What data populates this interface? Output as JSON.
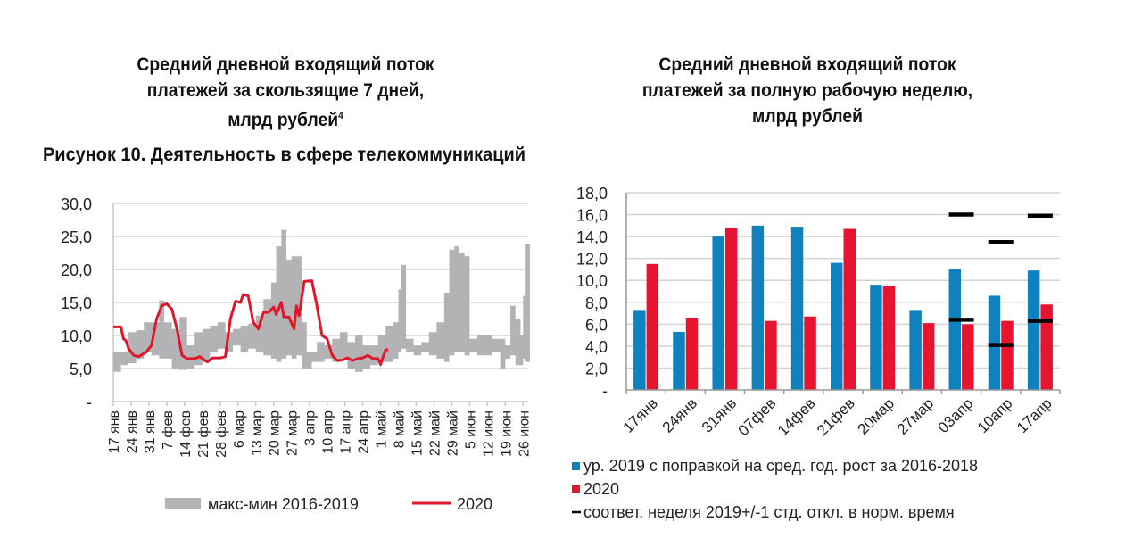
{
  "titles": {
    "left": [
      "Средний дневной входящий поток",
      "платежей за скользящие 7 дней,",
      "млрд рублей"
    ],
    "left_footnote": "4",
    "right": [
      "Средний дневной входящий поток",
      "платежей за полную рабочую неделю,",
      "млрд рублей"
    ],
    "figure_caption": "Рисунок 10. Деятельность в сфере телекоммуникаций"
  },
  "chart_data": [
    {
      "type": "area",
      "title": "Средний дневной входящий поток платежей за скользящие 7 дней, млрд рублей",
      "ylim": [
        0,
        30
      ],
      "yticks": [
        "-",
        "5,0",
        "10,0",
        "15,0",
        "20,0",
        "25,0",
        "30,0"
      ],
      "ytick_values": [
        0,
        5,
        10,
        15,
        20,
        25,
        30
      ],
      "grid": true,
      "xlim_days": [
        0,
        163
      ],
      "xtick_labels": [
        "17 янв",
        "24 янв",
        "31 янв",
        "7 фев",
        "14 фев",
        "21 фев",
        "28 фев",
        "6 мар",
        "13 мар",
        "20 мар",
        "27 мар",
        "3 апр",
        "10 апр",
        "17 апр",
        "24 апр",
        "1 май",
        "8 май",
        "15 май",
        "22 май",
        "29 май",
        "5 июн",
        "12 июн",
        "19 июн",
        "26 июн"
      ],
      "legend": [
        {
          "name": "макс-мин 2016-2019",
          "color": "#b3b3b5",
          "kind": "band"
        },
        {
          "name": "2020",
          "color": "#e0162b",
          "kind": "line"
        }
      ],
      "legend_position": "bottom",
      "band_day_min_max": [
        [
          0,
          4.5,
          7.5
        ],
        [
          3,
          5.5,
          7.5
        ],
        [
          6,
          5.8,
          10.5
        ],
        [
          9,
          6.5,
          10.8
        ],
        [
          12,
          7.5,
          12.0
        ],
        [
          15,
          7.0,
          12.0
        ],
        [
          18,
          6.5,
          15.3
        ],
        [
          20,
          6.5,
          12.0
        ],
        [
          23,
          5.0,
          11.0
        ],
        [
          26,
          4.8,
          12.8
        ],
        [
          29,
          5.0,
          8.5
        ],
        [
          32,
          5.5,
          10.5
        ],
        [
          35,
          6.0,
          11.0
        ],
        [
          38,
          7.5,
          11.5
        ],
        [
          41,
          8.0,
          12.0
        ],
        [
          44,
          7.5,
          10.5
        ],
        [
          47,
          8.5,
          11.0
        ],
        [
          50,
          7.5,
          11.5
        ],
        [
          53,
          8.0,
          11.8
        ],
        [
          56,
          7.5,
          13.0
        ],
        [
          59,
          7.0,
          15.5
        ],
        [
          62,
          6.5,
          18.0
        ],
        [
          64,
          6.0,
          23.5
        ],
        [
          66,
          6.5,
          26.0
        ],
        [
          68,
          7.0,
          21.5
        ],
        [
          70,
          6.5,
          22.0
        ],
        [
          72,
          7.0,
          22.0
        ],
        [
          74,
          5.0,
          12.0
        ],
        [
          76,
          5.0,
          7.5
        ],
        [
          78,
          6.0,
          7.5
        ],
        [
          80,
          6.0,
          9.0
        ],
        [
          83,
          6.5,
          8.5
        ],
        [
          86,
          6.0,
          9.5
        ],
        [
          89,
          6.5,
          10.5
        ],
        [
          92,
          5.0,
          9.0
        ],
        [
          95,
          4.5,
          10.0
        ],
        [
          98,
          5.0,
          8.5
        ],
        [
          101,
          5.5,
          8.5
        ],
        [
          104,
          6.0,
          10.0
        ],
        [
          107,
          6.0,
          11.5
        ],
        [
          110,
          6.5,
          12.0
        ],
        [
          112,
          7.5,
          17.0
        ],
        [
          113,
          8.0,
          20.7
        ],
        [
          115,
          7.5,
          9.5
        ],
        [
          118,
          7.0,
          8.5
        ],
        [
          121,
          7.5,
          9.0
        ],
        [
          124,
          7.0,
          10.5
        ],
        [
          127,
          6.5,
          12.0
        ],
        [
          130,
          6.0,
          16.5
        ],
        [
          132,
          7.0,
          23.0
        ],
        [
          134,
          7.5,
          23.5
        ],
        [
          136,
          7.5,
          22.5
        ],
        [
          138,
          7.0,
          22.0
        ],
        [
          140,
          7.5,
          9.5
        ],
        [
          143,
          7.0,
          10.0
        ],
        [
          146,
          7.0,
          10.0
        ],
        [
          149,
          7.5,
          9.5
        ],
        [
          152,
          5.0,
          9.5
        ],
        [
          154,
          6.5,
          8.5
        ],
        [
          156,
          7.0,
          14.5
        ],
        [
          158,
          5.5,
          12.5
        ],
        [
          160,
          5.5,
          10.0
        ],
        [
          161,
          6.5,
          16.0
        ],
        [
          162,
          6.0,
          23.8
        ],
        [
          163,
          6.0,
          23.8
        ]
      ],
      "line_2020_day_value": [
        [
          0,
          11.3
        ],
        [
          3,
          11.3
        ],
        [
          4,
          9.5
        ],
        [
          5,
          9.2
        ],
        [
          6,
          8.0
        ],
        [
          8,
          7.0
        ],
        [
          10,
          6.8
        ],
        [
          13,
          7.5
        ],
        [
          15,
          8.5
        ],
        [
          17,
          12.5
        ],
        [
          19,
          14.5
        ],
        [
          21,
          14.8
        ],
        [
          23,
          14.0
        ],
        [
          25,
          11.0
        ],
        [
          27,
          7.0
        ],
        [
          29,
          6.5
        ],
        [
          32,
          6.5
        ],
        [
          34,
          6.8
        ],
        [
          36,
          6.2
        ],
        [
          37,
          6.0
        ],
        [
          39,
          6.6
        ],
        [
          42,
          6.6
        ],
        [
          44,
          6.8
        ],
        [
          46,
          12.5
        ],
        [
          48,
          15.2
        ],
        [
          50,
          15.0
        ],
        [
          51,
          16.2
        ],
        [
          53,
          16.0
        ],
        [
          55,
          12.0
        ],
        [
          57,
          11.0
        ],
        [
          59,
          13.5
        ],
        [
          61,
          13.5
        ],
        [
          63,
          14.3
        ],
        [
          64,
          13.2
        ],
        [
          66,
          15.0
        ],
        [
          67,
          12.8
        ],
        [
          69,
          12.8
        ],
        [
          71,
          11.0
        ],
        [
          72,
          14.5
        ],
        [
          73,
          13.0
        ],
        [
          75,
          18.2
        ],
        [
          78,
          18.3
        ],
        [
          80,
          14.5
        ],
        [
          82,
          10.0
        ],
        [
          84,
          9.5
        ],
        [
          86,
          7.0
        ],
        [
          88,
          6.2
        ],
        [
          90,
          6.3
        ],
        [
          92,
          6.6
        ],
        [
          94,
          6.2
        ],
        [
          96,
          6.5
        ],
        [
          98,
          6.6
        ],
        [
          100,
          7.0
        ],
        [
          102,
          6.5
        ],
        [
          104,
          6.5
        ],
        [
          105,
          5.6
        ],
        [
          106,
          6.8
        ],
        [
          107,
          7.8
        ],
        [
          108,
          7.9
        ]
      ]
    },
    {
      "type": "bar",
      "title": "Средний дневной входящий поток платежей за полную рабочую неделю, млрд рублей",
      "ylim": [
        0,
        18
      ],
      "yticks": [
        "-",
        "2,0",
        "4,0",
        "6,0",
        "8,0",
        "10,0",
        "12,0",
        "14,0",
        "16,0",
        "18,0"
      ],
      "ytick_values": [
        0,
        2,
        4,
        6,
        8,
        10,
        12,
        14,
        16,
        18
      ],
      "grid": true,
      "categories": [
        "17янв",
        "24янв",
        "31янв",
        "07фев",
        "14фев",
        "21фев",
        "20мар",
        "27мар",
        "03апр",
        "10апр",
        "17апр"
      ],
      "series": [
        {
          "name": "ур. 2019 с  поправкой на сред. год. рост за 2016-2018",
          "color": "#0f82bd",
          "values": [
            7.3,
            5.3,
            14.0,
            15.0,
            14.9,
            11.6,
            9.6,
            7.3,
            11.0,
            8.6,
            10.9
          ]
        },
        {
          "name": "2020",
          "color": "#e8132f",
          "values": [
            11.5,
            6.6,
            14.8,
            6.3,
            6.7,
            14.7,
            9.5,
            6.1,
            6.0,
            6.3,
            7.8
          ]
        }
      ],
      "markers": {
        "name": "соответ. неделя 2019+/-1 стд. откл. в норм. время",
        "color": "#000000",
        "points": [
          {
            "category": "03апр",
            "upper": 16.0,
            "lower": 6.4
          },
          {
            "category": "10апр",
            "upper": 13.5,
            "lower": 4.1
          },
          {
            "category": "17апр",
            "upper": 15.9,
            "lower": 6.3
          }
        ]
      },
      "legend_position": "bottom-left"
    }
  ]
}
